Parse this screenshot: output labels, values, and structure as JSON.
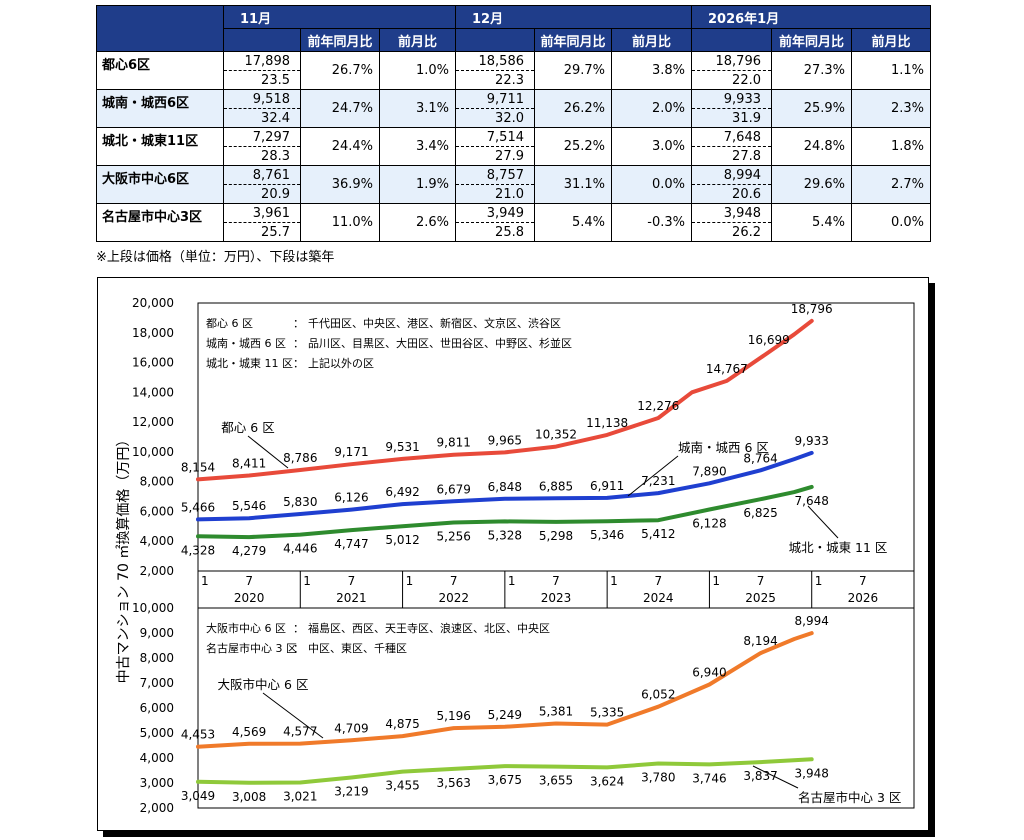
{
  "table": {
    "months": [
      "11月",
      "12月",
      "2026年1月"
    ],
    "col_yoy": "前年同月比",
    "col_mom": "前月比",
    "rows": [
      {
        "name": "都心6区",
        "cells": [
          [
            "17,898",
            "23.5",
            "26.7%",
            "1.0%"
          ],
          [
            "18,586",
            "22.3",
            "29.7%",
            "3.8%"
          ],
          [
            "18,796",
            "22.0",
            "27.3%",
            "1.1%"
          ]
        ]
      },
      {
        "name": "城南・城西6区",
        "cells": [
          [
            "9,518",
            "32.4",
            "24.7%",
            "3.1%"
          ],
          [
            "9,711",
            "32.0",
            "26.2%",
            "2.0%"
          ],
          [
            "9,933",
            "31.9",
            "25.9%",
            "2.3%"
          ]
        ]
      },
      {
        "name": "城北・城東11区",
        "cells": [
          [
            "7,297",
            "28.3",
            "24.4%",
            "3.4%"
          ],
          [
            "7,514",
            "27.9",
            "25.2%",
            "3.0%"
          ],
          [
            "7,648",
            "27.8",
            "24.8%",
            "1.8%"
          ]
        ]
      },
      {
        "name": "大阪市中心6区",
        "cells": [
          [
            "8,761",
            "20.9",
            "36.9%",
            "1.9%"
          ],
          [
            "8,757",
            "21.0",
            "31.1%",
            "0.0%"
          ],
          [
            "8,994",
            "20.6",
            "29.6%",
            "2.7%"
          ]
        ]
      },
      {
        "name": "名古屋市中心3区",
        "cells": [
          [
            "3,961",
            "25.7",
            "11.0%",
            "2.6%"
          ],
          [
            "3,949",
            "25.8",
            "5.4%",
            "-0.3%"
          ],
          [
            "3,948",
            "26.2",
            "5.4%",
            "0.0%"
          ]
        ]
      }
    ],
    "note": "※上段は価格（単位：万円）、下段は築年"
  },
  "chart_data": [
    {
      "type": "line",
      "ylabel": "中古マンション 70 ㎡換算価格（万円）",
      "ylim": [
        2000,
        20000
      ],
      "yticks": [
        "2,000",
        "4,000",
        "6,000",
        "8,000",
        "10,000",
        "12,000",
        "14,000",
        "16,000",
        "18,000",
        "20,000"
      ],
      "xlim": [
        2020.0,
        2027.0
      ],
      "x_month_ticks": [
        "1",
        "7"
      ],
      "x_year_labels": [
        "2020",
        "2021",
        "2022",
        "2023",
        "2024",
        "2025",
        "2026"
      ],
      "legend": [
        [
          "都心 6 区",
          "：",
          "千代田区、中央区、港区、新宿区、文京区、渋谷区"
        ],
        [
          "城南・城西 6 区",
          "：",
          "品川区、目黒区、大田区、世田谷区、中野区、杉並区"
        ],
        [
          "城北・城東 11 区",
          "：",
          "上記以外の区"
        ]
      ],
      "series": [
        {
          "name": "都心 6 区",
          "color": "#e84a3a",
          "x": [
            2020.0,
            2020.5,
            2021.0,
            2021.5,
            2022.0,
            2022.5,
            2023.0,
            2023.5,
            2024.0,
            2024.5,
            2024.83,
            2025.17,
            2025.58,
            2025.83,
            2026.0
          ],
          "values": [
            8154,
            8411,
            8786,
            9171,
            9531,
            9811,
            9965,
            10352,
            11138,
            12276,
            14000,
            14767,
            16699,
            17898,
            18796
          ],
          "labels": [
            "8,154",
            "8,411",
            "8,786",
            "9,171",
            "9,531",
            "9,811",
            "9,965",
            "10,352",
            "11,138",
            "12,276",
            "",
            "14,767",
            "16,699",
            "",
            "18,796"
          ]
        },
        {
          "name": "城南・城西 6 区",
          "color": "#1f3fd0",
          "x": [
            2020.0,
            2020.5,
            2021.0,
            2021.5,
            2022.0,
            2022.5,
            2023.0,
            2023.5,
            2024.0,
            2024.5,
            2025.0,
            2025.5,
            2025.83,
            2026.0
          ],
          "values": [
            5466,
            5546,
            5830,
            6126,
            6492,
            6679,
            6848,
            6885,
            6911,
            7231,
            7890,
            8764,
            9518,
            9933
          ],
          "labels": [
            "5,466",
            "5,546",
            "5,830",
            "6,126",
            "6,492",
            "6,679",
            "6,848",
            "6,885",
            "6,911",
            "7,231",
            "7,890",
            "8,764",
            "",
            "9,933"
          ]
        },
        {
          "name": "城北・城東 11 区",
          "color": "#2e8b2e",
          "x": [
            2020.0,
            2020.5,
            2021.0,
            2021.5,
            2022.0,
            2022.5,
            2023.0,
            2023.5,
            2024.0,
            2024.5,
            2025.0,
            2025.5,
            2025.83,
            2026.0
          ],
          "values": [
            4328,
            4279,
            4446,
            4747,
            5012,
            5256,
            5328,
            5298,
            5346,
            5412,
            6128,
            6825,
            7297,
            7648
          ],
          "labels": [
            "4,328",
            "4,279",
            "4,446",
            "4,747",
            "5,012",
            "5,256",
            "5,328",
            "5,298",
            "5,346",
            "5,412",
            "6,128",
            "6,825",
            "",
            "7,648"
          ]
        }
      ]
    },
    {
      "type": "line",
      "ylim": [
        2000,
        10000
      ],
      "yticks": [
        "2,000",
        "3,000",
        "4,000",
        "5,000",
        "6,000",
        "7,000",
        "8,000",
        "9,000",
        "10,000"
      ],
      "xlim": [
        2020.0,
        2027.0
      ],
      "legend": [
        [
          "大阪市中心 6 区",
          "：",
          "福島区、西区、天王寺区、浪速区、北区、中央区"
        ],
        [
          "名古屋市中心 3 区",
          "：",
          "中区、東区、千種区"
        ]
      ],
      "series": [
        {
          "name": "大阪市中心 6 区",
          "color": "#f07a2a",
          "x": [
            2020.0,
            2020.5,
            2021.0,
            2021.5,
            2022.0,
            2022.5,
            2023.0,
            2023.5,
            2024.0,
            2024.5,
            2025.0,
            2025.5,
            2025.83,
            2026.0
          ],
          "values": [
            4453,
            4569,
            4577,
            4709,
            4875,
            5196,
            5249,
            5381,
            5335,
            6052,
            6940,
            8194,
            8761,
            8994
          ],
          "labels": [
            "4,453",
            "4,569",
            "4,577",
            "4,709",
            "4,875",
            "5,196",
            "5,249",
            "5,381",
            "5,335",
            "6,052",
            "6,940",
            "8,194",
            "",
            "8,994"
          ]
        },
        {
          "name": "名古屋市中心 3 区",
          "color": "#8fc93a",
          "x": [
            2020.0,
            2020.5,
            2021.0,
            2021.5,
            2022.0,
            2022.5,
            2023.0,
            2023.5,
            2024.0,
            2024.5,
            2025.0,
            2025.5,
            2026.0
          ],
          "values": [
            3049,
            3008,
            3021,
            3219,
            3455,
            3563,
            3675,
            3655,
            3624,
            3780,
            3746,
            3837,
            3948
          ],
          "labels": [
            "3,049",
            "3,008",
            "3,021",
            "3,219",
            "3,455",
            "3,563",
            "3,675",
            "3,655",
            "3,624",
            "3,780",
            "3,746",
            "3,837",
            "3,948"
          ]
        }
      ]
    }
  ]
}
